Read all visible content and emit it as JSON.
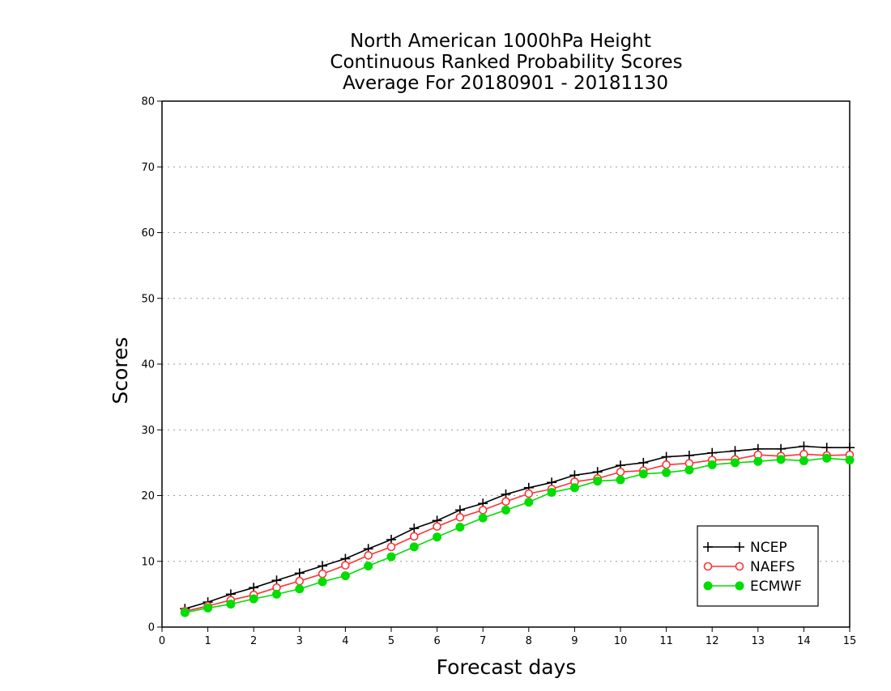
{
  "chart_data": {
    "type": "line",
    "title": [
      "North American 1000hPa Height",
      "Continuous Ranked Probability Scores",
      "Average For 20180901 - 20181130"
    ],
    "xlabel": "Forecast days",
    "ylabel": "Scores",
    "xlim": [
      0,
      15
    ],
    "ylim": [
      0,
      80
    ],
    "xticks": [
      "0",
      "1",
      "2",
      "3",
      "4",
      "5",
      "6",
      "7",
      "8",
      "9",
      "10",
      "11",
      "12",
      "13",
      "14",
      "15"
    ],
    "yticks": [
      "0",
      "10",
      "20",
      "30",
      "40",
      "50",
      "60",
      "70",
      "80"
    ],
    "grid": "horizontal dotted",
    "legend_position": "bottom-right",
    "x": [
      0.5,
      1,
      1.5,
      2,
      2.5,
      3,
      3.5,
      4,
      4.5,
      5,
      5.5,
      6,
      6.5,
      7,
      7.5,
      8,
      8.5,
      9,
      9.5,
      10,
      10.5,
      11,
      11.5,
      12,
      12.5,
      13,
      13.5,
      14,
      14.5,
      15
    ],
    "series": [
      {
        "name": "NCEP",
        "color": "#000000",
        "marker": "plus",
        "values": [
          2.8,
          3.8,
          5.0,
          6.0,
          7.1,
          8.2,
          9.3,
          10.4,
          11.9,
          13.3,
          15.0,
          16.2,
          17.8,
          18.8,
          20.2,
          21.2,
          22.0,
          23.1,
          23.6,
          24.6,
          25.0,
          25.9,
          26.1,
          26.5,
          26.8,
          27.1,
          27.1,
          27.5,
          27.3,
          27.3
        ]
      },
      {
        "name": "NAEFS",
        "color": "#ff3333",
        "marker": "open-circle",
        "values": [
          2.4,
          3.2,
          4.1,
          4.9,
          6.0,
          7.0,
          8.1,
          9.4,
          10.9,
          12.2,
          13.8,
          15.3,
          16.7,
          17.8,
          19.1,
          20.3,
          21.0,
          22.1,
          22.6,
          23.6,
          23.8,
          24.7,
          24.9,
          25.4,
          25.5,
          26.2,
          26.0,
          26.3,
          26.1,
          26.2
        ]
      },
      {
        "name": "ECMWF",
        "color": "#00dd00",
        "marker": "filled-circle",
        "values": [
          2.2,
          2.9,
          3.5,
          4.3,
          5.0,
          5.8,
          6.9,
          7.8,
          9.3,
          10.7,
          12.2,
          13.7,
          15.2,
          16.6,
          17.8,
          19.0,
          20.5,
          21.2,
          22.2,
          22.4,
          23.3,
          23.5,
          23.9,
          24.7,
          25.0,
          25.2,
          25.5,
          25.3,
          25.7,
          25.4
        ]
      }
    ]
  }
}
